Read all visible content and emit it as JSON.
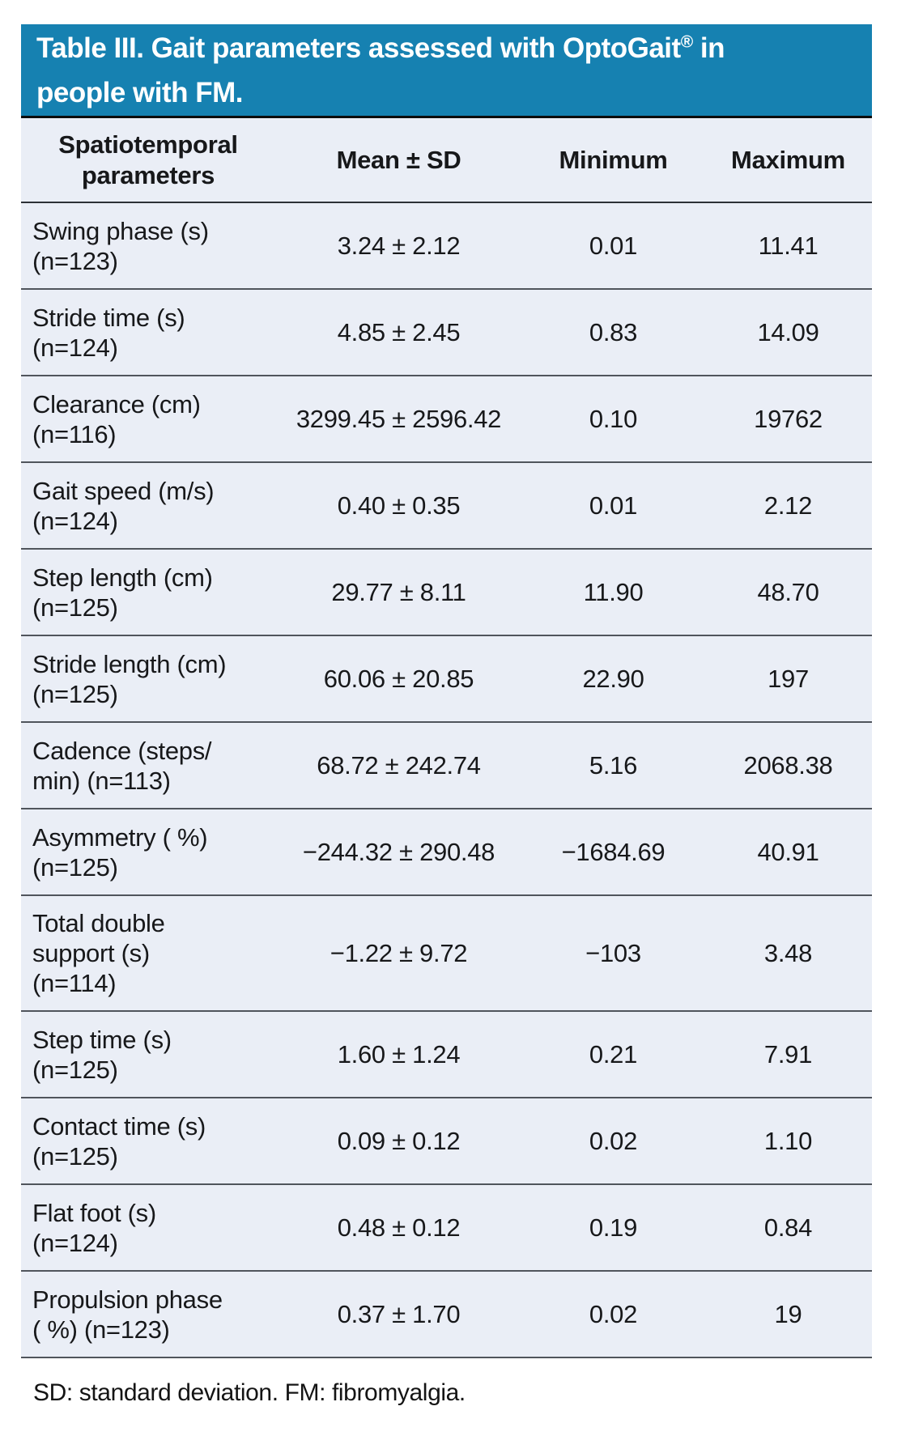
{
  "title": {
    "line1_pre": "Table III. Gait parameters assessed with OptoGait",
    "reg_mark": "®",
    "line1_post": " in",
    "line2": "people with FM."
  },
  "table": {
    "columns": [
      "Spatiotemporal\nparameters",
      "Mean ± SD",
      "Minimum",
      "Maximum"
    ],
    "rows": [
      {
        "param": "Swing phase (s)\n(n=123)",
        "mean_sd": "3.24 ± 2.12",
        "min": "0.01",
        "max": "11.41"
      },
      {
        "param": "Stride time (s)\n(n=124)",
        "mean_sd": "4.85 ± 2.45",
        "min": "0.83",
        "max": "14.09"
      },
      {
        "param": "Clearance (cm)\n(n=116)",
        "mean_sd": "3299.45 ± 2596.42",
        "min": "0.10",
        "max": "19762"
      },
      {
        "param": "Gait speed (m/s)\n(n=124)",
        "mean_sd": "0.40 ± 0.35",
        "min": "0.01",
        "max": "2.12"
      },
      {
        "param": "Step length (cm)\n(n=125)",
        "mean_sd": "29.77 ± 8.11",
        "min": "11.90",
        "max": "48.70"
      },
      {
        "param": "Stride length (cm)\n(n=125)",
        "mean_sd": "60.06 ± 20.85",
        "min": "22.90",
        "max": "197"
      },
      {
        "param": "Cadence (steps/\nmin) (n=113)",
        "mean_sd": "68.72 ± 242.74",
        "min": "5.16",
        "max": "2068.38"
      },
      {
        "param": "Asymmetry ( %)\n(n=125)",
        "mean_sd": "−244.32 ± 290.48",
        "min": "−1684.69",
        "max": "40.91"
      },
      {
        "param": "Total double\nsupport (s)\n(n=114)",
        "mean_sd": "−1.22 ± 9.72",
        "min": "−103",
        "max": "3.48"
      },
      {
        "param": "Step time (s)\n(n=125)",
        "mean_sd": "1.60 ± 1.24",
        "min": "0.21",
        "max": "7.91"
      },
      {
        "param": "Contact time (s)\n(n=125)",
        "mean_sd": "0.09 ± 0.12",
        "min": "0.02",
        "max": "1.10"
      },
      {
        "param": "Flat foot (s)\n(n=124)",
        "mean_sd": "0.48 ± 0.12",
        "min": "0.19",
        "max": "0.84"
      },
      {
        "param": "Propulsion phase\n( %) (n=123)",
        "mean_sd": "0.37 ± 1.70",
        "min": "0.02",
        "max": "19"
      }
    ]
  },
  "footnote": "SD: standard deviation. FM: fibromyalgia.",
  "colors": {
    "title_bg": "#1681b1",
    "title_text": "#ffffff",
    "body_bg": "#eaeef6",
    "separator_line": "#50555c",
    "header_line": "#2c3036",
    "text": "#17181a",
    "page_bg": "#ffffff"
  }
}
